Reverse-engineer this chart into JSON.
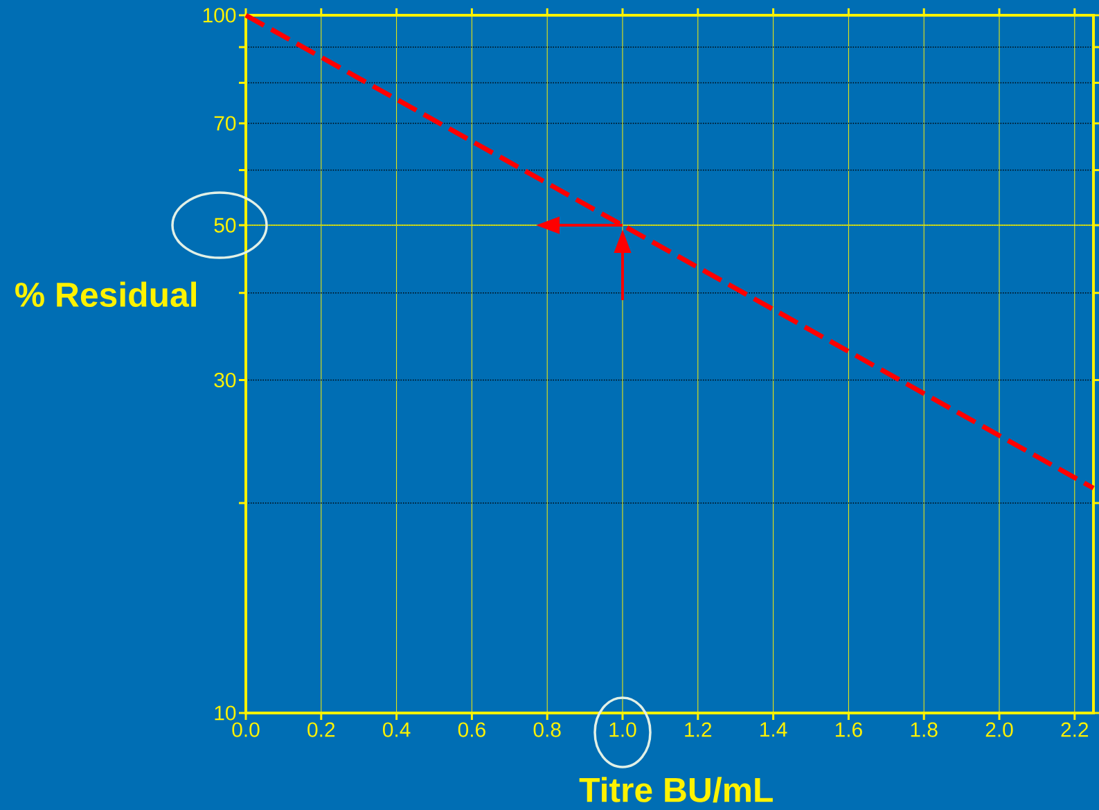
{
  "chart_data": {
    "type": "line",
    "xlabel": "Titre BU/mL",
    "ylabel": "% Residual",
    "x": [
      0,
      1.0,
      2.25
    ],
    "series": [
      {
        "color": "#ff0000",
        "values": [
          100,
          50,
          21
        ]
      }
    ],
    "xlim": [
      0,
      2.25
    ],
    "ylim": [
      10,
      100
    ],
    "xticks": [
      {
        "value": 0,
        "label": "0.0"
      },
      0.2,
      0.4,
      0.6,
      0.8,
      {
        "value": 1,
        "label": "1.0"
      },
      1.2,
      1.4,
      1.6,
      1.8,
      {
        "value": 2,
        "label": "2.0"
      },
      2.2
    ],
    "yticks": [
      10,
      {
        "value": 20,
        "label": null
      },
      30,
      {
        "value": 40,
        "label": null
      },
      50,
      {
        "value": 60,
        "label": null
      },
      70,
      {
        "value": 80,
        "label": null
      },
      {
        "value": 90,
        "label": null
      },
      100
    ],
    "log": true,
    "grid": true,
    "line_style": "dashed",
    "ref_lines": [
      {
        "axis": "y",
        "value": 50,
        "color": "#ffff00"
      }
    ]
  }
}
